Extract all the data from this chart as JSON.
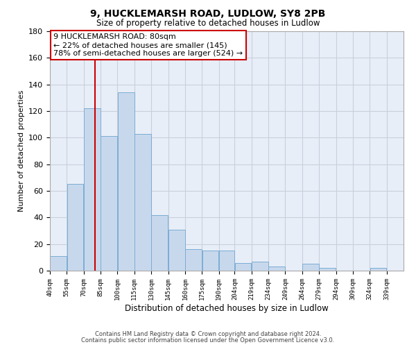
{
  "title": "9, HUCKLEMARSH ROAD, LUDLOW, SY8 2PB",
  "subtitle": "Size of property relative to detached houses in Ludlow",
  "xlabel": "Distribution of detached houses by size in Ludlow",
  "ylabel": "Number of detached properties",
  "bar_left_edges": [
    40,
    55,
    70,
    85,
    100,
    115,
    130,
    145,
    160,
    175,
    190,
    204,
    219,
    234,
    249,
    264,
    279,
    294,
    309,
    324
  ],
  "bar_widths": [
    15,
    15,
    15,
    15,
    15,
    15,
    15,
    15,
    15,
    15,
    14,
    15,
    15,
    15,
    15,
    15,
    15,
    15,
    15,
    15
  ],
  "bar_heights": [
    11,
    65,
    122,
    101,
    134,
    103,
    42,
    31,
    16,
    15,
    15,
    6,
    7,
    3,
    0,
    5,
    2,
    0,
    0,
    2
  ],
  "tick_labels": [
    "40sqm",
    "55sqm",
    "70sqm",
    "85sqm",
    "100sqm",
    "115sqm",
    "130sqm",
    "145sqm",
    "160sqm",
    "175sqm",
    "190sqm",
    "204sqm",
    "219sqm",
    "234sqm",
    "249sqm",
    "264sqm",
    "279sqm",
    "294sqm",
    "309sqm",
    "324sqm",
    "339sqm"
  ],
  "tick_positions": [
    40,
    55,
    70,
    85,
    100,
    115,
    130,
    145,
    160,
    175,
    190,
    204,
    219,
    234,
    249,
    264,
    279,
    294,
    309,
    324,
    339
  ],
  "bar_color": "#c8d8ec",
  "bar_edge_color": "#7badd4",
  "vline_x": 80,
  "vline_color": "#cc0000",
  "ylim": [
    0,
    180
  ],
  "yticks": [
    0,
    20,
    40,
    60,
    80,
    100,
    120,
    140,
    160,
    180
  ],
  "annotation_box_text": "9 HUCKLEMARSH ROAD: 80sqm\n← 22% of detached houses are smaller (145)\n78% of semi-detached houses are larger (524) →",
  "box_edge_color": "#cc0000",
  "footnote1": "Contains HM Land Registry data © Crown copyright and database right 2024.",
  "footnote2": "Contains public sector information licensed under the Open Government Licence v3.0.",
  "background_color": "#ffffff",
  "plot_bg_color": "#e8eef8",
  "grid_color": "#c8d0dc"
}
